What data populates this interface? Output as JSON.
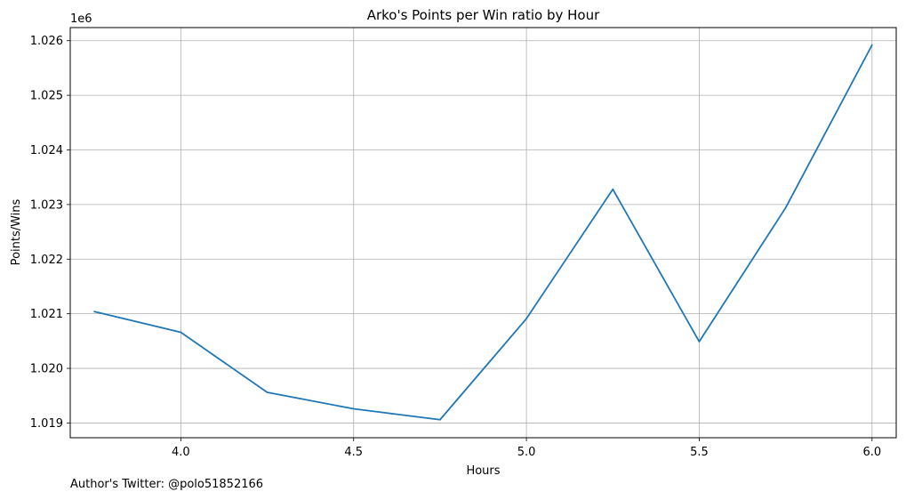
{
  "chart_data": {
    "type": "line",
    "title": "Arko's Points per Win ratio by Hour",
    "xlabel": "Hours",
    "ylabel": "Points/Wins",
    "y_offset_label": "1e6",
    "xlim": [
      3.68,
      6.07
    ],
    "ylim": [
      1.01873,
      1.02624
    ],
    "x_ticks": [
      4.0,
      4.5,
      5.0,
      5.5,
      6.0
    ],
    "x_tick_labels": [
      "4.0",
      "4.5",
      "5.0",
      "5.5",
      "6.0"
    ],
    "y_ticks": [
      1.019,
      1.02,
      1.021,
      1.022,
      1.023,
      1.024,
      1.025,
      1.026
    ],
    "y_tick_labels": [
      "1.019",
      "1.020",
      "1.021",
      "1.022",
      "1.023",
      "1.024",
      "1.025",
      "1.026"
    ],
    "grid": true,
    "line_color": "#1f77b4",
    "series": [
      {
        "x": [
          3.75,
          4.0,
          4.25,
          4.5,
          4.75,
          5.0,
          5.25,
          5.5,
          5.75,
          6.0
        ],
        "values": [
          1.02104,
          1.02066,
          1.01956,
          1.01926,
          1.01906,
          1.02091,
          1.02328,
          1.02049,
          1.02294,
          1.02592
        ]
      }
    ]
  },
  "footer": {
    "credit": "Author's Twitter: @polo51852166"
  }
}
